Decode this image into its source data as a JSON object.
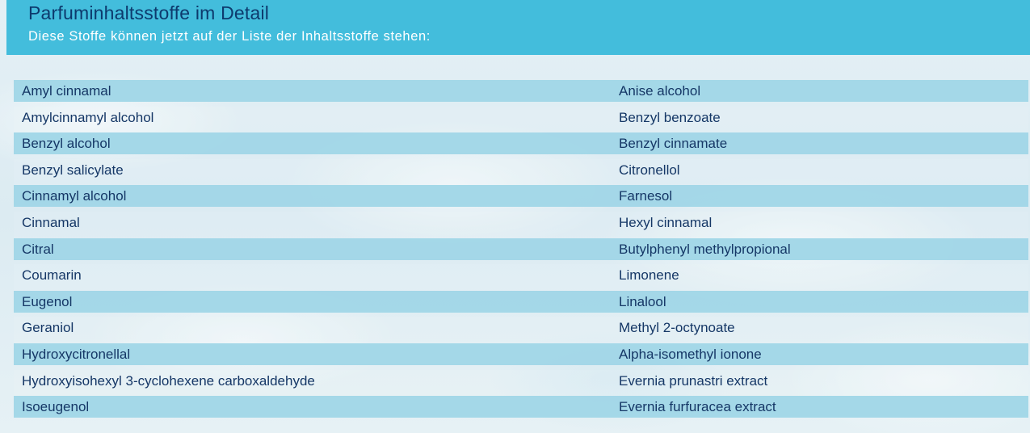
{
  "header": {
    "title": "Parfuminhaltsstoffe im Detail",
    "subtitle": "Diese Stoffe können jetzt auf der Liste der Inhaltsstoffe stehen:"
  },
  "ingredients": [
    {
      "left": "Amyl cinnamal",
      "right": "Anise alcohol"
    },
    {
      "left": "Amylcinnamyl alcohol",
      "right": "Benzyl benzoate"
    },
    {
      "left": "Benzyl alcohol",
      "right": "Benzyl cinnamate"
    },
    {
      "left": "Benzyl salicylate",
      "right": "Citronellol"
    },
    {
      "left": "Cinnamyl alcohol",
      "right": "Farnesol"
    },
    {
      "left": "Cinnamal",
      "right": "Hexyl cinnamal"
    },
    {
      "left": "Citral",
      "right": "Butylphenyl methylpropional"
    },
    {
      "left": "Coumarin",
      "right": "Limonene"
    },
    {
      "left": "Eugenol",
      "right": "Linalool"
    },
    {
      "left": "Geraniol",
      "right": "Methyl 2-octynoate"
    },
    {
      "left": "Hydroxycitronellal",
      "right": "Alpha-isomethyl ionone"
    },
    {
      "left": "Hydroxyisohexyl 3-cyclohexene carboxaldehyde",
      "right": "Evernia prunastri extract"
    },
    {
      "left": "Isoeugenol",
      "right": "Evernia furfuracea extract"
    }
  ],
  "colors": {
    "header_background": "#43bddc",
    "title_text": "#0d3a6d",
    "subtitle_text": "#ffffff",
    "row_shade": "#a0d6e7",
    "row_text": "#153766"
  }
}
